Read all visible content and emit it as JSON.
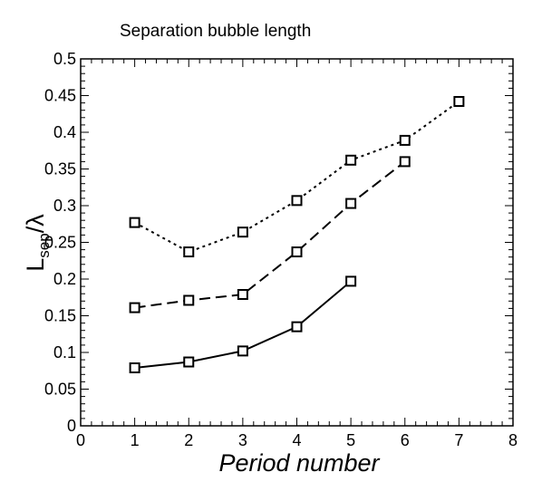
{
  "chart_data": {
    "type": "line",
    "title": "Separation bubble length",
    "xlabel": "Period number",
    "ylabel": {
      "main": "L",
      "subscript": "sep",
      "suffix": "/λ"
    },
    "xlim": [
      0,
      8
    ],
    "ylim": [
      0,
      0.5
    ],
    "xticks": [
      "0",
      "1",
      "2",
      "3",
      "4",
      "5",
      "6",
      "7",
      "8"
    ],
    "xtick_values": [
      0,
      1,
      2,
      3,
      4,
      5,
      6,
      7,
      8
    ],
    "yticks": [
      "0",
      "0.05",
      "0.1",
      "0.15",
      "0.2",
      "0.25",
      "0.3",
      "0.35",
      "0.4",
      "0.45",
      "0.5"
    ],
    "ytick_values": [
      0,
      0.05,
      0.1,
      0.15,
      0.2,
      0.25,
      0.3,
      0.35,
      0.4,
      0.45,
      0.5
    ],
    "grid": false,
    "marker": "square",
    "series": [
      {
        "line_style": "solid",
        "color": "#000000",
        "x": [
          1,
          2,
          3,
          4,
          5
        ],
        "y": [
          0.079,
          0.087,
          0.102,
          0.135,
          0.197
        ]
      },
      {
        "line_style": "dashed",
        "color": "#000000",
        "x": [
          1,
          2,
          3,
          4,
          5,
          6
        ],
        "y": [
          0.161,
          0.171,
          0.179,
          0.237,
          0.303,
          0.36
        ]
      },
      {
        "line_style": "dotted",
        "color": "#000000",
        "x": [
          1,
          2,
          3,
          4,
          5,
          6,
          7
        ],
        "y": [
          0.277,
          0.237,
          0.264,
          0.307,
          0.362,
          0.389,
          0.442
        ]
      }
    ]
  }
}
